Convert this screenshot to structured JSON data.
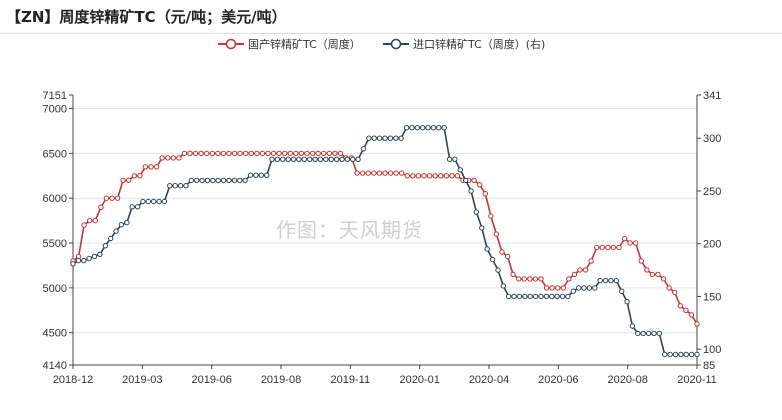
{
  "title": "【ZN】周度锌精矿TC（元/吨；美元/吨）",
  "watermark": "作图：天风期货",
  "chart_data": {
    "type": "line",
    "title": "【ZN】周度锌精矿TC（元/吨；美元/吨）",
    "legend_position": "top-center",
    "grid": true,
    "x_tick_labels": [
      "2018-12",
      "2019-03",
      "2019-06",
      "2019-08",
      "2019-11",
      "2020-01",
      "2020-04",
      "2020-06",
      "2020-08",
      "2020-11"
    ],
    "y_left": {
      "range": [
        4140,
        7151
      ],
      "ticks": [
        4140,
        4500,
        5000,
        5500,
        6000,
        6500,
        7000,
        7151
      ]
    },
    "y_right": {
      "range": [
        85,
        341
      ],
      "ticks": [
        85,
        100,
        150,
        200,
        250,
        300,
        341
      ]
    },
    "series": [
      {
        "name": "国产锌精矿TC（周度）",
        "axis": "left",
        "color": "#c23531",
        "values": [
          5300,
          5350,
          5700,
          5750,
          5750,
          5900,
          6000,
          6000,
          6000,
          6200,
          6200,
          6250,
          6250,
          6350,
          6350,
          6350,
          6450,
          6450,
          6450,
          6450,
          6500,
          6500,
          6500,
          6500,
          6500,
          6500,
          6500,
          6500,
          6500,
          6500,
          6500,
          6500,
          6500,
          6500,
          6500,
          6500,
          6500,
          6500,
          6500,
          6500,
          6500,
          6500,
          6500,
          6500,
          6500,
          6500,
          6500,
          6500,
          6500,
          6450,
          6450,
          6280,
          6280,
          6280,
          6280,
          6280,
          6280,
          6280,
          6280,
          6280,
          6250,
          6250,
          6250,
          6250,
          6250,
          6250,
          6250,
          6250,
          6250,
          6250,
          6200,
          6200,
          6200,
          6150,
          6050,
          5800,
          5600,
          5400,
          5350,
          5150,
          5100,
          5100,
          5100,
          5100,
          5100,
          5000,
          5000,
          5000,
          5000,
          5100,
          5150,
          5200,
          5200,
          5300,
          5450,
          5450,
          5450,
          5450,
          5450,
          5550,
          5500,
          5500,
          5300,
          5200,
          5150,
          5150,
          5100,
          5000,
          4950,
          4800,
          4750,
          4700,
          4600
        ]
      },
      {
        "name": "进口锌精矿TC（周度）(右)",
        "axis": "right",
        "color": "#2f4554",
        "values": [
          181,
          184,
          184,
          186,
          188,
          190,
          198,
          205,
          212,
          218,
          220,
          235,
          235,
          240,
          240,
          240,
          240,
          240,
          255,
          255,
          255,
          255,
          260,
          260,
          260,
          260,
          260,
          260,
          260,
          260,
          260,
          260,
          260,
          265,
          265,
          265,
          265,
          280,
          280,
          280,
          280,
          280,
          280,
          280,
          280,
          280,
          280,
          280,
          280,
          280,
          280,
          280,
          280,
          280,
          290,
          300,
          300,
          300,
          300,
          300,
          300,
          300,
          310,
          310,
          310,
          310,
          310,
          310,
          310,
          310,
          280,
          280,
          270,
          260,
          250,
          230,
          215,
          195,
          185,
          175,
          160,
          150,
          150,
          150,
          150,
          150,
          150,
          150,
          150,
          150,
          150,
          150,
          150,
          155,
          158,
          158,
          158,
          158,
          165,
          165,
          165,
          165,
          155,
          145,
          122,
          115,
          115,
          115,
          115,
          115,
          95,
          95,
          95,
          95,
          95,
          95,
          95
        ]
      }
    ]
  }
}
